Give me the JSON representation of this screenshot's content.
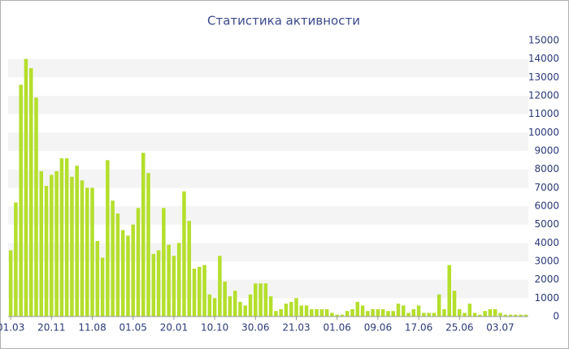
{
  "chart_data": {
    "type": "bar",
    "title": "Статистика активности",
    "color": "#b4df2c",
    "stripe_color": "#f4f4f4",
    "categories": [
      "01.03",
      null,
      null,
      null,
      null,
      null,
      null,
      null,
      "20.11",
      null,
      null,
      null,
      null,
      null,
      null,
      null,
      "11.08",
      null,
      null,
      null,
      null,
      null,
      null,
      null,
      "01.05",
      null,
      null,
      null,
      null,
      null,
      null,
      null,
      "20.01",
      null,
      null,
      null,
      null,
      null,
      null,
      null,
      "10.10",
      null,
      null,
      null,
      null,
      null,
      null,
      null,
      "30.06",
      null,
      null,
      null,
      null,
      null,
      null,
      null,
      "21.03",
      null,
      null,
      null,
      null,
      null,
      null,
      null,
      "01.06",
      null,
      null,
      null,
      null,
      null,
      null,
      null,
      "09.06",
      null,
      null,
      null,
      null,
      null,
      null,
      null,
      "17.06",
      null,
      null,
      null,
      null,
      null,
      null,
      null,
      "25.06",
      null,
      null,
      null,
      null,
      null,
      null,
      null,
      "03.07",
      null,
      null,
      null,
      null,
      null
    ],
    "values": [
      3600,
      6200,
      12600,
      14000,
      13500,
      11900,
      7900,
      7100,
      7700,
      7900,
      8600,
      8600,
      7600,
      8200,
      7400,
      7000,
      7000,
      4100,
      3200,
      8500,
      6300,
      5600,
      4700,
      4400,
      5000,
      5900,
      8900,
      7800,
      3400,
      3600,
      5900,
      3900,
      3300,
      4000,
      6800,
      5200,
      2600,
      2700,
      2800,
      1200,
      1000,
      3300,
      1900,
      1100,
      1400,
      800,
      600,
      1200,
      1800,
      1800,
      1800,
      1100,
      300,
      400,
      700,
      800,
      1000,
      600,
      600,
      400,
      400,
      400,
      400,
      200,
      100,
      100,
      300,
      400,
      800,
      600,
      300,
      400,
      400,
      400,
      300,
      300,
      700,
      600,
      200,
      400,
      600,
      200,
      200,
      200,
      1200,
      400,
      2800,
      1400,
      400,
      200,
      700,
      200,
      100,
      300,
      400,
      400,
      200,
      100,
      100,
      100,
      100,
      100
    ],
    "ylim": [
      0,
      15000
    ],
    "yticks": [
      0,
      1000,
      2000,
      3000,
      4000,
      5000,
      6000,
      7000,
      8000,
      9000,
      10000,
      11000,
      12000,
      13000,
      14000,
      15000
    ]
  }
}
